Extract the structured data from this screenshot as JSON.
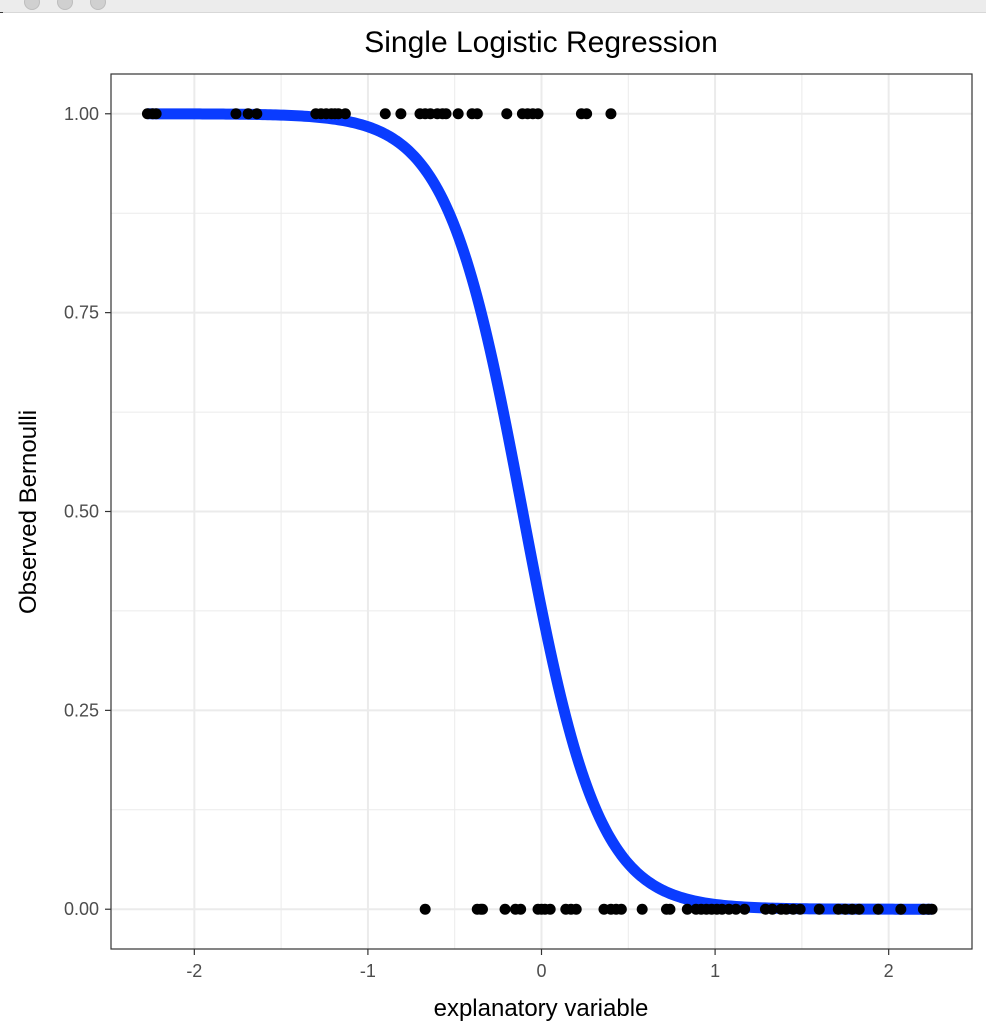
{
  "chart_data": {
    "type": "scatter",
    "title": "Single Logistic Regression",
    "xlabel": "explanatory variable",
    "ylabel": "Observed Bernoulli",
    "xlim": [
      -2.48,
      2.48
    ],
    "ylim": [
      -0.05,
      1.05
    ],
    "x_ticks": [
      -2,
      -1,
      0,
      1,
      2
    ],
    "x_tick_labels": [
      "-2",
      "-1",
      "0",
      "1",
      "2"
    ],
    "y_ticks": [
      0,
      0.25,
      0.5,
      0.75,
      1
    ],
    "y_tick_labels": [
      "0.00",
      "0.25",
      "0.50",
      "0.75",
      "1.00"
    ],
    "grid": true,
    "colors": {
      "curve": "#0a3cff",
      "points": "#000000",
      "grid": "#ebebeb",
      "panel_border": "#333333"
    },
    "fit_curve": {
      "intercept": -0.5,
      "slope": -4.6
    },
    "series": [
      {
        "values_y": 1,
        "x": [
          -2.27,
          -2.24,
          -2.22,
          -1.76,
          -1.69,
          -1.64,
          -1.3,
          -1.27,
          -1.24,
          -1.21,
          -1.19,
          -1.17,
          -1.13,
          -0.9,
          -0.81,
          -0.7,
          -0.67,
          -0.64,
          -0.6,
          -0.57,
          -0.55,
          -0.48,
          -0.4,
          -0.37,
          -0.2,
          -0.11,
          -0.08,
          -0.05,
          -0.02,
          0.23,
          0.26,
          0.4
        ]
      },
      {
        "values_y": 0,
        "x": [
          -0.67,
          -0.37,
          -0.35,
          -0.34,
          -0.21,
          -0.15,
          -0.12,
          -0.02,
          0.0,
          0.02,
          0.05,
          0.14,
          0.17,
          0.2,
          0.36,
          0.4,
          0.43,
          0.46,
          0.58,
          0.72,
          0.74,
          0.84,
          0.89,
          0.92,
          0.95,
          0.98,
          1.01,
          1.04,
          1.08,
          1.12,
          1.17,
          1.29,
          1.33,
          1.38,
          1.41,
          1.45,
          1.49,
          1.6,
          1.71,
          1.75,
          1.79,
          1.83,
          1.94,
          2.07,
          2.2,
          2.23,
          2.25
        ]
      }
    ]
  }
}
